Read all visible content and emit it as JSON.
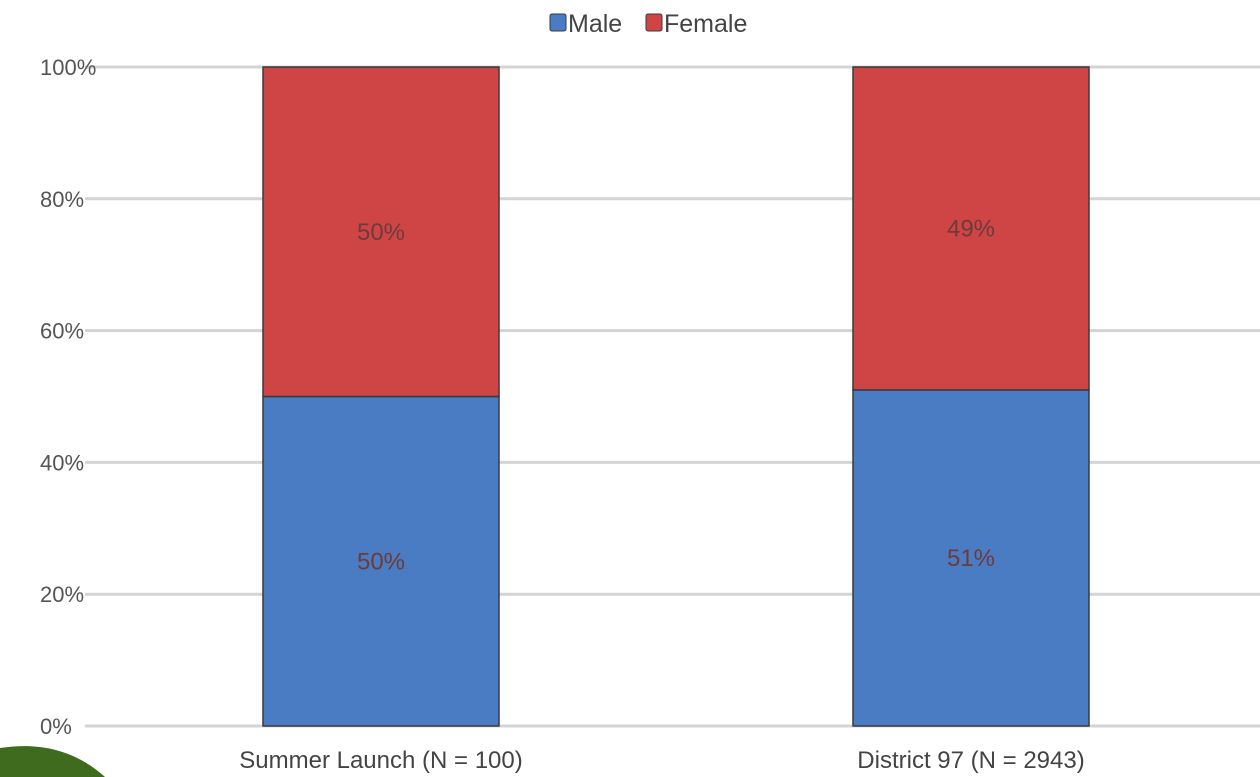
{
  "chart_data": {
    "type": "bar",
    "stacked": true,
    "categories": [
      "Summer Launch (N = 100)",
      "District 97 (N = 2943)"
    ],
    "series": [
      {
        "name": "Male",
        "color": "#4a7cc3",
        "values": [
          50,
          51
        ],
        "labels": [
          "50%",
          "51%"
        ]
      },
      {
        "name": "Female",
        "color": "#cf4545",
        "values": [
          50,
          49
        ],
        "labels": [
          "50%",
          "49%"
        ]
      }
    ],
    "ylim": [
      0,
      100
    ],
    "yticks": [
      {
        "value": 0,
        "label": "0%"
      },
      {
        "value": 20,
        "label": "20%"
      },
      {
        "value": 40,
        "label": "40%"
      },
      {
        "value": 60,
        "label": "60%"
      },
      {
        "value": 80,
        "label": "80%"
      },
      {
        "value": 100,
        "label": "100%"
      }
    ],
    "grid": true,
    "legend_position": "top"
  },
  "decor": {
    "accent_color": "#3f6b1e"
  }
}
